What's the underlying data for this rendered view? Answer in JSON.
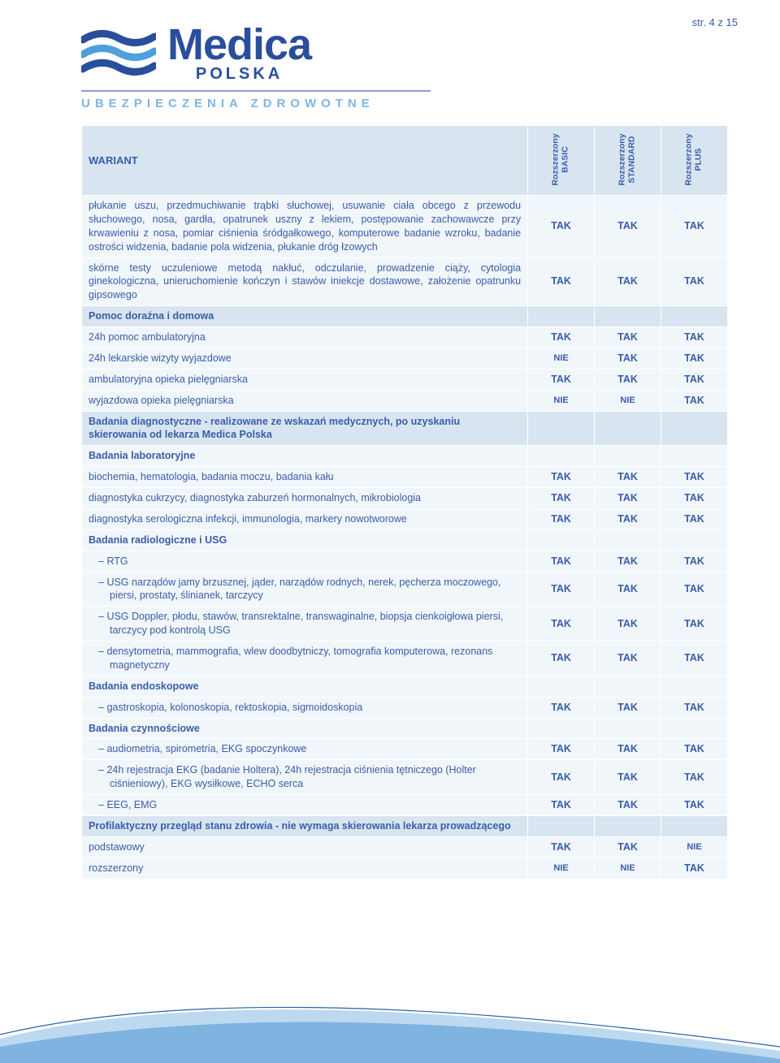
{
  "page_number": "str. 4 z 15",
  "logo": {
    "brand": "Medica",
    "sub_brand": "POLSKA",
    "tagline": "UBEZPIECZENIA ZDROWOTNE",
    "wave_colors": [
      "#2a4e9b",
      "#4f9fdc",
      "#2a4e9b"
    ]
  },
  "colors": {
    "text": "#3a5da8",
    "header_bg": "#d8e5f1",
    "row_bg": "#f1f6fa",
    "border": "#ffffff"
  },
  "columns": {
    "variant_label": "WARIANT",
    "col1": "Rozszerzony\nBASIC",
    "col2": "Rozszerzony\nSTANDARD",
    "col3": "Rozszerzony\nPLUS"
  },
  "values": {
    "TAK": "TAK",
    "NIE": "NIE"
  },
  "rows": [
    {
      "type": "data",
      "label": "płukanie uszu, przedmuchiwanie trąbki słuchowej, usuwanie ciała obcego z przewodu słuchowego, nosa, gardła, opatrunek uszny z lekiem, postępowanie zachowawcze przy krwawieniu z nosa, pomiar ciśnienia śródgałkowego, komputerowe badanie wzroku, badanie ostrości widzenia, badanie pola widzenia, płukanie dróg łzowych",
      "v": [
        "TAK",
        "TAK",
        "TAK"
      ]
    },
    {
      "type": "data",
      "label": "skórne testy uczuleniowe metodą nakłuć, odczulanie, prowadzenie ciąży, cytologia ginekologiczna, unieruchomienie kończyn i stawów iniekcje dostawowe, założenie opatrunku gipsowego",
      "v": [
        "TAK",
        "TAK",
        "TAK"
      ]
    },
    {
      "type": "section",
      "label": "Pomoc doraźna i domowa"
    },
    {
      "type": "data",
      "label": "24h pomoc ambulatoryjna",
      "v": [
        "TAK",
        "TAK",
        "TAK"
      ]
    },
    {
      "type": "data",
      "label": "24h lekarskie wizyty wyjazdowe",
      "v": [
        "NIE",
        "TAK",
        "TAK"
      ]
    },
    {
      "type": "data",
      "label": "ambulatoryjna opieka pielęgniarska",
      "v": [
        "TAK",
        "TAK",
        "TAK"
      ]
    },
    {
      "type": "data",
      "label": "wyjazdowa opieka pielęgniarska",
      "v": [
        "NIE",
        "NIE",
        "TAK"
      ]
    },
    {
      "type": "section",
      "label": "Badania diagnostyczne - realizowane ze wskazań medycznych, po uzyskaniu skierowania od lekarza Medica Polska"
    },
    {
      "type": "subhead",
      "label": "Badania laboratoryjne"
    },
    {
      "type": "data",
      "label": "biochemia, hematologia, badania moczu, badania kału",
      "v": [
        "TAK",
        "TAK",
        "TAK"
      ]
    },
    {
      "type": "data",
      "label": "diagnostyka cukrzycy, diagnostyka zaburzeń hormonalnych, mikrobiologia",
      "v": [
        "TAK",
        "TAK",
        "TAK"
      ]
    },
    {
      "type": "data",
      "label": "diagnostyka serologiczna infekcji, immunologia, markery nowotworowe",
      "v": [
        "TAK",
        "TAK",
        "TAK"
      ]
    },
    {
      "type": "subhead",
      "label": "Badania radiologiczne i USG"
    },
    {
      "type": "data",
      "indent": true,
      "label": "RTG",
      "v": [
        "TAK",
        "TAK",
        "TAK"
      ]
    },
    {
      "type": "data",
      "indent": true,
      "label": "USG narządów jamy brzusznej, jąder, narządów rodnych, nerek, pęcherza moczowego, piersi, prostaty, ślinianek, tarczycy",
      "v": [
        "TAK",
        "TAK",
        "TAK"
      ]
    },
    {
      "type": "data",
      "indent": true,
      "label": "USG Doppler, płodu, stawów, transrektalne, transwaginalne, biopsja cienkoigłowa piersi, tarczycy pod kontrolą USG",
      "v": [
        "TAK",
        "TAK",
        "TAK"
      ]
    },
    {
      "type": "data",
      "indent": true,
      "label": "densytometria, mammografia, wlew doodbytniczy, tomografia komputerowa, rezonans magnetyczny",
      "v": [
        "TAK",
        "TAK",
        "TAK"
      ]
    },
    {
      "type": "subhead",
      "label": "Badania endoskopowe"
    },
    {
      "type": "data",
      "indent": true,
      "label": "gastroskopia, kolonoskopia, rektoskopia, sigmoidoskopia",
      "v": [
        "TAK",
        "TAK",
        "TAK"
      ]
    },
    {
      "type": "subhead",
      "label": "Badania czynnościowe"
    },
    {
      "type": "data",
      "indent": true,
      "label": "audiometria, spirometria, EKG spoczynkowe",
      "v": [
        "TAK",
        "TAK",
        "TAK"
      ]
    },
    {
      "type": "data",
      "indent": true,
      "label": "24h rejestracja EKG (badanie Holtera), 24h rejestracja ciśnienia tętniczego (Holter ciśnieniowy), EKG wysiłkowe, ECHO serca",
      "v": [
        "TAK",
        "TAK",
        "TAK"
      ]
    },
    {
      "type": "data",
      "indent": true,
      "label": "EEG, EMG",
      "v": [
        "TAK",
        "TAK",
        "TAK"
      ]
    },
    {
      "type": "section",
      "label": "Profilaktyczny przegląd stanu zdrowia - nie wymaga skierowania lekarza prowadzącego"
    },
    {
      "type": "data",
      "label": "podstawowy",
      "v": [
        "TAK",
        "TAK",
        "NIE"
      ]
    },
    {
      "type": "data",
      "label": "rozszerzony",
      "v": [
        "NIE",
        "NIE",
        "TAK"
      ]
    }
  ]
}
